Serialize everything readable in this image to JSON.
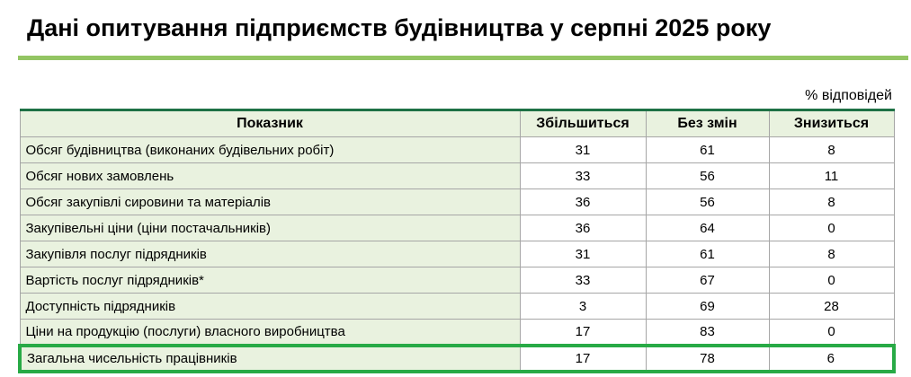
{
  "page": {
    "title": "Дані опитування підприємств будівництва у серпні 2025 року",
    "percent_note": "% відповідей"
  },
  "colors": {
    "accent_bar_green": "#93C563",
    "table_top_border_green": "#1E7145",
    "cell_light_green": "#E9F2DF",
    "grid_gray": "#A6A6A6",
    "highlight_border_green": "#28AA46",
    "title_text": "#000000"
  },
  "chart_data": {
    "type": "table",
    "title": "Дані опитування підприємств будівництва у серпні 2025 року",
    "unit": "% відповідей",
    "columns": [
      "Показник",
      "Збільшиться",
      "Без змін",
      "Знизиться"
    ],
    "rows": [
      {
        "label": "Обсяг будівництва (виконаних будівельних робіт)",
        "values": [
          31,
          61,
          8
        ]
      },
      {
        "label": "Обсяг нових замовлень",
        "values": [
          33,
          56,
          11
        ]
      },
      {
        "label": "Обсяг закупівлі сировини та матеріалів",
        "values": [
          36,
          56,
          8
        ]
      },
      {
        "label": "Закупівельні ціни (ціни постачальників)",
        "values": [
          36,
          64,
          0
        ]
      },
      {
        "label": "Закупівля послуг підрядників",
        "values": [
          31,
          61,
          8
        ]
      },
      {
        "label": "Вартість послуг підрядників*",
        "values": [
          33,
          67,
          0
        ]
      },
      {
        "label": "Доступність підрядників",
        "values": [
          3,
          69,
          28
        ]
      },
      {
        "label": "Ціни на продукцію (послуги) власного виробництва",
        "values": [
          17,
          83,
          0
        ]
      },
      {
        "label": "Загальна чисельність працівників",
        "values": [
          17,
          78,
          6
        ],
        "highlighted": true
      }
    ],
    "highlighted_row": "Загальна чисельність працівників",
    "layout": {
      "grid": true,
      "header_position": "top",
      "value_columns_centered": true
    }
  }
}
